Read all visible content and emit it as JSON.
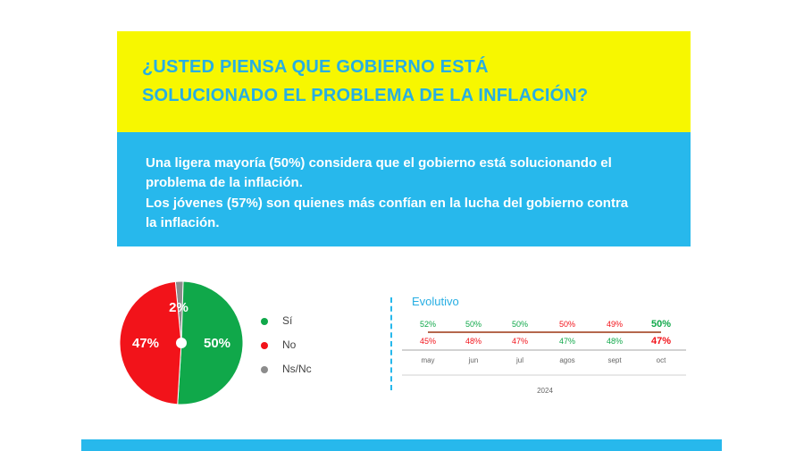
{
  "title": {
    "line1": "¿USTED PIENSA QUE GOBIERNO ESTÁ",
    "line2": "SOLUCIONADO EL PROBLEMA DE LA INFLACIÓN?"
  },
  "description": {
    "line1": "Una ligera mayoría (50%) considera que el gobierno está solucionando el",
    "line2": "problema de la inflación.",
    "line3": "Los jóvenes (57%) son quienes más confían en la lucha del gobierno contra",
    "line4": "la inflación."
  },
  "colors": {
    "yes": "#10a84a",
    "no": "#f2131a",
    "nsnc": "#8c8c8c"
  },
  "chart_data": [
    {
      "type": "pie",
      "slices": [
        {
          "name": "Sí",
          "value": 50,
          "label": "50%"
        },
        {
          "name": "No",
          "value": 47,
          "label": "47%"
        },
        {
          "name": "Ns/Nc",
          "value": 2,
          "label": "2%"
        }
      ],
      "legend": [
        "Sí",
        "No",
        "Ns/Nc"
      ],
      "legend_position": "right"
    },
    {
      "type": "line",
      "title": "Evolutivo",
      "xlabel": "2024",
      "categories": [
        "may",
        "jun",
        "jul",
        "agos",
        "sept",
        "oct"
      ],
      "series": [
        {
          "name": "Sí",
          "values": [
            52,
            50,
            50,
            47,
            48,
            50
          ],
          "labels": [
            "52%",
            "50%",
            "50%",
            "47%",
            "48%",
            "50%"
          ]
        },
        {
          "name": "No",
          "values": [
            45,
            48,
            47,
            50,
            49,
            47
          ],
          "labels": [
            "45%",
            "48%",
            "47%",
            "50%",
            "49%",
            "47%"
          ]
        }
      ]
    }
  ]
}
